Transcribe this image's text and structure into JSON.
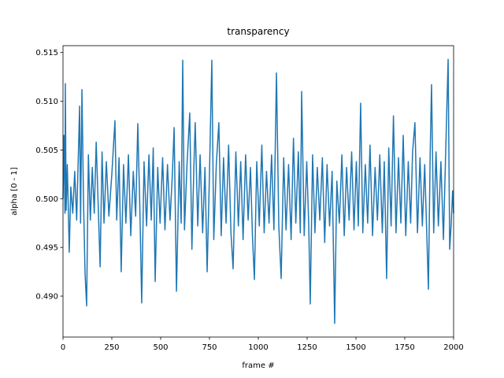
{
  "chart_data": {
    "type": "line",
    "title": "transparency",
    "x_label": "frame #",
    "y_label": "alpha [0 - 1]",
    "color": "#1f77b4",
    "grid": false,
    "xlim": [
      0,
      2000
    ],
    "xticks": [
      0,
      250,
      500,
      750,
      1000,
      1250,
      1500,
      1750,
      2000
    ],
    "ylim": [
      0.4858,
      0.5157
    ],
    "yticks": [
      {
        "value": 0.49,
        "label": "0.490"
      },
      0.495,
      {
        "value": 0.5,
        "label": "0.500"
      },
      0.505,
      {
        "value": 0.51,
        "label": "0.510"
      },
      0.515
    ],
    "x": [
      0,
      5,
      10,
      12,
      16,
      22,
      32,
      40,
      50,
      60,
      70,
      85,
      90,
      97,
      105,
      113,
      121,
      130,
      140,
      150,
      160,
      170,
      180,
      190,
      200,
      210,
      222,
      235,
      250,
      266,
      275,
      287,
      298,
      310,
      322,
      335,
      347,
      360,
      372,
      383,
      393,
      403,
      415,
      428,
      440,
      452,
      462,
      472,
      485,
      497,
      510,
      522,
      535,
      548,
      560,
      569,
      581,
      595,
      605,
      613,
      622,
      635,
      649,
      660,
      670,
      677,
      690,
      702,
      715,
      727,
      738,
      750,
      762,
      772,
      785,
      798,
      810,
      822,
      835,
      848,
      860,
      871,
      885,
      898,
      910,
      922,
      935,
      948,
      960,
      970,
      980,
      992,
      1005,
      1018,
      1030,
      1042,
      1055,
      1068,
      1080,
      1093,
      1105,
      1117,
      1130,
      1142,
      1155,
      1168,
      1180,
      1192,
      1205,
      1215,
      1222,
      1235,
      1248,
      1258,
      1266,
      1278,
      1290,
      1302,
      1315,
      1328,
      1340,
      1352,
      1365,
      1378,
      1391,
      1402,
      1415,
      1428,
      1440,
      1452,
      1465,
      1478,
      1490,
      1502,
      1512,
      1524,
      1535,
      1548,
      1560,
      1572,
      1585,
      1598,
      1610,
      1622,
      1635,
      1645,
      1657,
      1668,
      1680,
      1692,
      1705,
      1718,
      1730,
      1742,
      1755,
      1768,
      1780,
      1790,
      1802,
      1815,
      1828,
      1840,
      1852,
      1862,
      1871,
      1880,
      1887,
      1898,
      1910,
      1922,
      1935,
      1948,
      1960,
      1972,
      1980,
      1988,
      1995,
      2000
    ],
    "values": [
      0.5,
      0.5065,
      0.4985,
      0.5118,
      0.4988,
      0.5035,
      0.4945,
      0.5012,
      0.4985,
      0.5028,
      0.4978,
      0.5095,
      0.4975,
      0.5112,
      0.4998,
      0.4923,
      0.489,
      0.5045,
      0.4978,
      0.5032,
      0.4985,
      0.5058,
      0.4995,
      0.493,
      0.5048,
      0.4975,
      0.5038,
      0.4982,
      0.5025,
      0.508,
      0.4978,
      0.5042,
      0.4925,
      0.5035,
      0.4975,
      0.5045,
      0.4962,
      0.5028,
      0.4982,
      0.5077,
      0.4995,
      0.4893,
      0.5038,
      0.4972,
      0.5045,
      0.4978,
      0.5052,
      0.4915,
      0.5032,
      0.4975,
      0.5042,
      0.4968,
      0.5035,
      0.4978,
      0.5025,
      0.5073,
      0.4905,
      0.5038,
      0.4975,
      0.5142,
      0.4968,
      0.5035,
      0.5088,
      0.4948,
      0.5032,
      0.5078,
      0.4972,
      0.5045,
      0.4965,
      0.5032,
      0.4925,
      0.5025,
      0.5142,
      0.4958,
      0.5035,
      0.5078,
      0.4962,
      0.5042,
      0.4975,
      0.5055,
      0.4965,
      0.4928,
      0.5048,
      0.4972,
      0.5038,
      0.4958,
      0.5045,
      0.4978,
      0.5032,
      0.4962,
      0.4917,
      0.5038,
      0.4972,
      0.5055,
      0.4965,
      0.5028,
      0.4975,
      0.5045,
      0.4968,
      0.5129,
      0.4972,
      0.4918,
      0.5042,
      0.4968,
      0.5035,
      0.4958,
      0.5062,
      0.4975,
      0.5048,
      0.4965,
      0.511,
      0.4962,
      0.5038,
      0.4975,
      0.4892,
      0.5045,
      0.4965,
      0.5032,
      0.4978,
      0.5042,
      0.4955,
      0.5035,
      0.4972,
      0.5028,
      0.4872,
      0.5018,
      0.4975,
      0.5045,
      0.4962,
      0.5032,
      0.4978,
      0.5048,
      0.4968,
      0.5038,
      0.4972,
      0.5098,
      0.4965,
      0.5035,
      0.4975,
      0.5055,
      0.4962,
      0.5032,
      0.4978,
      0.5045,
      0.4965,
      0.5038,
      0.4918,
      0.5052,
      0.4972,
      0.5085,
      0.4965,
      0.5042,
      0.4975,
      0.5065,
      0.4962,
      0.5038,
      0.4975,
      0.5048,
      0.5078,
      0.4965,
      0.5042,
      0.4972,
      0.5035,
      0.4968,
      0.4907,
      0.5045,
      0.5117,
      0.4965,
      0.5048,
      0.4972,
      0.5038,
      0.4958,
      0.5052,
      0.5143,
      0.4948,
      0.4975,
      0.5008,
      0.4985
    ]
  }
}
